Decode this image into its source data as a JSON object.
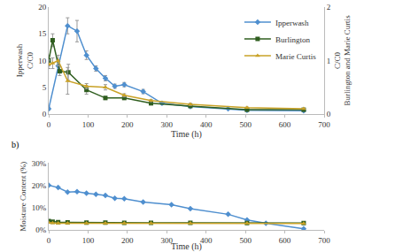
{
  "chart_data": [
    {
      "type": "line",
      "x_label": "Time (h)",
      "y_label": "Ipperwash\nC/C0",
      "y2_label": "C/C0\nBurlington and Marie Curtis",
      "xlim": [
        0,
        700
      ],
      "xticks": [
        0,
        100,
        200,
        300,
        400,
        500,
        600,
        700
      ],
      "ylim": [
        0,
        20
      ],
      "yticks": [
        0,
        5,
        10,
        15,
        20
      ],
      "y2lim": [
        0,
        2
      ],
      "y2ticks": [
        0,
        1,
        2
      ],
      "legend": "upper right",
      "series": [
        {
          "name": "Ipperwash",
          "color": "#4f8fcf",
          "marker": "diamond",
          "axis": "y",
          "x": [
            0,
            24,
            48,
            72,
            96,
            120,
            144,
            168,
            192,
            240,
            288,
            360,
            456,
            504,
            648
          ],
          "values": [
            1,
            9,
            16.5,
            15.5,
            11,
            8.5,
            6.7,
            5.2,
            5.5,
            4.2,
            2,
            1.4,
            1,
            0.7,
            0.6
          ],
          "error": [
            0.3,
            1.2,
            1.5,
            2,
            0.8,
            0.5,
            0.5,
            0.4,
            0.4,
            0.4,
            0.2,
            0.2,
            0.1,
            0.1,
            0.1
          ]
        },
        {
          "name": "Burlington",
          "color": "#2f5e1f",
          "marker": "square",
          "axis": "y2",
          "x": [
            0,
            10,
            28,
            50,
            96,
            144,
            192,
            260,
            360,
            504,
            648
          ],
          "values": [
            1,
            1.38,
            0.8,
            0.78,
            0.45,
            0.3,
            0.3,
            0.2,
            0.15,
            0.08,
            0.08
          ],
          "error": [
            0.1,
            0.12,
            0.08,
            0.15,
            0.08,
            0.03,
            0.03,
            0.02,
            0.02,
            0.01,
            0.01
          ]
        },
        {
          "name": "Marie Curtis",
          "color": "#c9a227",
          "marker": "triangle",
          "axis": "y2",
          "x": [
            0,
            10,
            24,
            48,
            96,
            144,
            192,
            260,
            360,
            504,
            648
          ],
          "values": [
            0.93,
            0.95,
            1.0,
            0.62,
            0.52,
            0.5,
            0.35,
            0.25,
            0.18,
            0.12,
            0.1
          ],
          "error": [
            0.08,
            0.1,
            0.1,
            0.25,
            0.05,
            0.05,
            0.03,
            0.02,
            0.02,
            0.01,
            0.01
          ]
        }
      ]
    },
    {
      "type": "line",
      "panel_label": "b)",
      "x_label": "Time (h)",
      "y_label": "Moisture Content (%)",
      "xlim": [
        0,
        700
      ],
      "xticks": [
        0,
        100,
        200,
        300,
        400,
        500,
        600,
        700
      ],
      "ylim": [
        0,
        30
      ],
      "yticks": [
        {
          "value": 0,
          "label": "0%"
        },
        {
          "value": 10,
          "label": "10%"
        },
        {
          "value": 20,
          "label": "20%"
        },
        {
          "value": 30,
          "label": "30%"
        }
      ],
      "series": [
        {
          "name": "Ipperwash",
          "color": "#4f8fcf",
          "marker": "diamond",
          "x": [
            0,
            24,
            48,
            72,
            96,
            120,
            144,
            168,
            192,
            240,
            312,
            360,
            456,
            504,
            552,
            648
          ],
          "values": [
            20,
            19,
            17,
            17.2,
            16.5,
            16,
            15.5,
            14.2,
            14,
            12.5,
            11.3,
            9.5,
            7,
            4.5,
            3,
            0.5
          ]
        },
        {
          "name": "Burlington",
          "color": "#2f5e1f",
          "marker": "square",
          "x": [
            0,
            10,
            24,
            48,
            96,
            144,
            192,
            260,
            360,
            504,
            648
          ],
          "values": [
            4,
            3.7,
            3.5,
            3.4,
            3.3,
            3.3,
            3.2,
            3.2,
            3.2,
            3.1,
            3.1
          ]
        },
        {
          "name": "Marie Curtis",
          "color": "#c9a227",
          "marker": "triangle",
          "x": [
            0,
            10,
            24,
            48,
            96,
            144,
            192,
            260,
            360,
            504,
            648
          ],
          "values": [
            3.3,
            3.1,
            3,
            3,
            3,
            3,
            3,
            3,
            3,
            3,
            2.9
          ]
        }
      ]
    }
  ]
}
